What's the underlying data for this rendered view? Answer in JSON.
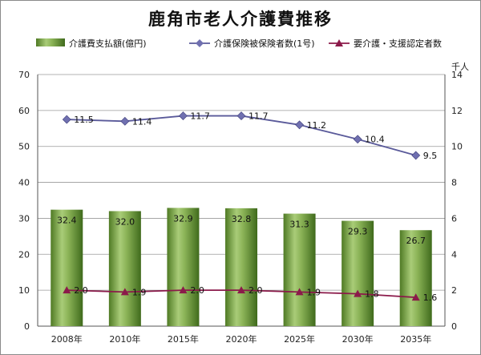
{
  "title": "鹿角市老人介護費推移",
  "legend": [
    {
      "label": "介護費支払額(億円)",
      "marker": "bar",
      "color": "#6f9a3e"
    },
    {
      "label": "介護保険被保険者数(1号)",
      "marker": "diamond",
      "color": "#5a5a9a"
    },
    {
      "label": "要介護・支援認定者数",
      "marker": "triangle",
      "color": "#8b1a4a"
    }
  ],
  "right_axis_unit": "千人",
  "chart_data": {
    "type": "bar",
    "categories": [
      "2008年",
      "2010年",
      "2015年",
      "2020年",
      "2025年",
      "2030年",
      "2035年"
    ],
    "y_left": {
      "min": 0,
      "max": 70,
      "ticks": [
        0,
        10,
        20,
        30,
        40,
        50,
        60,
        70
      ]
    },
    "y_right": {
      "min": 0,
      "max": 14,
      "ticks": [
        0,
        2,
        4,
        6,
        8,
        10,
        12,
        14
      ]
    },
    "grid": true,
    "legend_position": "top",
    "series": [
      {
        "name": "介護費支払額(億円)",
        "type": "bar",
        "axis": "left",
        "values": [
          32.4,
          32.0,
          32.9,
          32.8,
          31.3,
          29.3,
          26.7
        ],
        "labels": [
          "32.4",
          "32.0",
          "32.9",
          "32.8",
          "31.3",
          "29.3",
          "26.7"
        ]
      },
      {
        "name": "介護保険被保険者数(1号)",
        "type": "line",
        "axis": "right",
        "values": [
          11.5,
          11.4,
          11.7,
          11.7,
          11.2,
          10.4,
          9.5
        ],
        "labels": [
          "11.5",
          "11.4",
          "11.7",
          "11.7",
          "11.2",
          "10.4",
          "9.5"
        ]
      },
      {
        "name": "要介護・支援認定者数",
        "type": "line",
        "axis": "right",
        "values": [
          2.0,
          1.9,
          2.0,
          2.0,
          1.9,
          1.8,
          1.6
        ],
        "labels": [
          "2.0",
          "1.9",
          "2.0",
          "2.0",
          "1.9",
          "1.8",
          "1.6"
        ]
      }
    ]
  }
}
